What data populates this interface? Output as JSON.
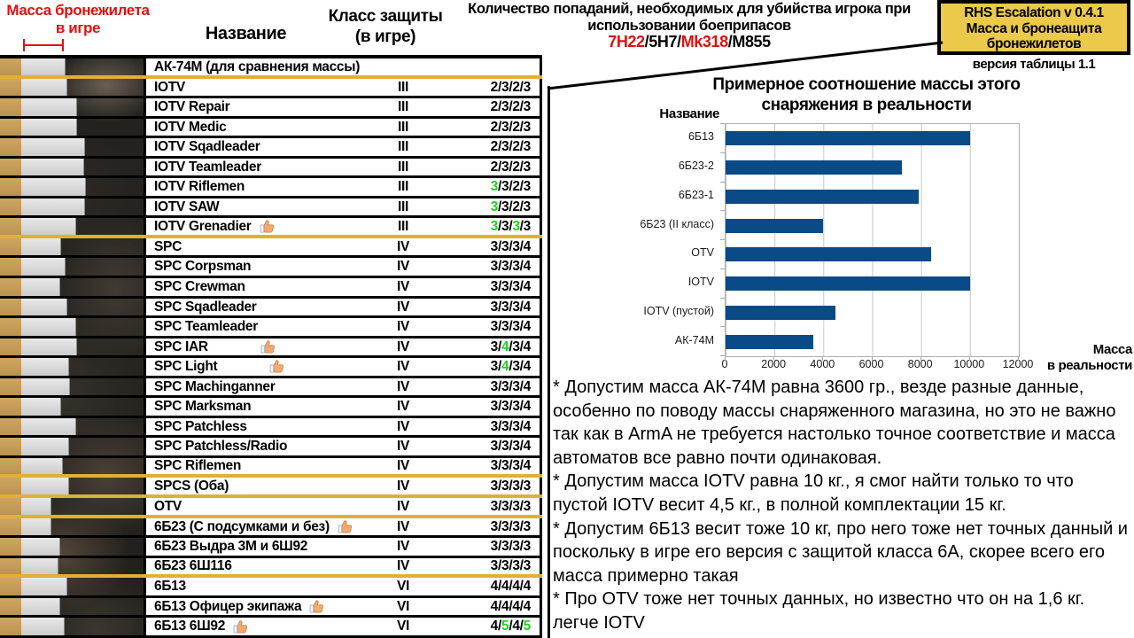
{
  "colors": {
    "red": "#e01010",
    "green": "#24cf24",
    "divider_yellow": "#e2ae36",
    "bar_blue": "#0a4a86",
    "tan": "#c89e58",
    "bar_gray": "#d9d9d9",
    "box_yellow": "#eac94b"
  },
  "header": {
    "mass_title_line1": "Масса бронежилета",
    "mass_title_line2": "в игре",
    "name_col": "Название",
    "class_col_line1": "Класс защиты",
    "class_col_line2": "(в игре)",
    "hits_line1": "Количество попаданий, необходимых для убийства игрока при",
    "hits_line2": "использовании боеприпасов",
    "ammo_parts": [
      {
        "text": "7Н22",
        "red": true
      },
      {
        "text": "/",
        "red": false
      },
      {
        "text": "5Н7",
        "red": false
      },
      {
        "text": "/",
        "red": false
      },
      {
        "text": "Mk318",
        "red": true
      },
      {
        "text": "/",
        "red": false
      },
      {
        "text": "M855",
        "red": false
      }
    ],
    "version_box_line1": "RHS Escalation v 0.4.1",
    "version_box_line2": "Масса и бронеащита",
    "version_box_line3": "бронежилетов",
    "version_note": "версия таблицы 1.1"
  },
  "table": {
    "rows": [
      {
        "name": "АК-74М (для сравнения массы)",
        "cls": "",
        "hits": [],
        "green": [],
        "thumb": false,
        "bar": 49,
        "divider": "yellow"
      },
      {
        "name": "IOTV",
        "cls": "III",
        "hits": [
          "2",
          "3",
          "2",
          "3"
        ],
        "green": [
          0,
          0,
          0,
          0
        ],
        "thumb": false,
        "bar": 51
      },
      {
        "name": "IOTV Repair",
        "cls": "III",
        "hits": [
          "2",
          "3",
          "2",
          "3"
        ],
        "green": [
          0,
          0,
          0,
          0
        ],
        "thumb": false,
        "bar": 62
      },
      {
        "name": "IOTV Medic",
        "cls": "III",
        "hits": [
          "2",
          "3",
          "2",
          "3"
        ],
        "green": [
          0,
          0,
          0,
          0
        ],
        "thumb": false,
        "bar": 62
      },
      {
        "name": "IOTV Sqadleader",
        "cls": "III",
        "hits": [
          "2",
          "3",
          "2",
          "3"
        ],
        "green": [
          0,
          0,
          0,
          0
        ],
        "thumb": false,
        "bar": 71
      },
      {
        "name": "IOTV Teamleader",
        "cls": "III",
        "hits": [
          "2",
          "3",
          "2",
          "3"
        ],
        "green": [
          0,
          0,
          0,
          0
        ],
        "thumb": false,
        "bar": 70
      },
      {
        "name": "IOTV Riflemen",
        "cls": "III",
        "hits": [
          "3",
          "3",
          "2",
          "3"
        ],
        "green": [
          1,
          0,
          0,
          0
        ],
        "thumb": false,
        "bar": 72
      },
      {
        "name": "IOTV SAW",
        "cls": "III",
        "hits": [
          "3",
          "3",
          "2",
          "3"
        ],
        "green": [
          1,
          0,
          0,
          0
        ],
        "thumb": false,
        "bar": 71
      },
      {
        "name": "IOTV Grenadier",
        "cls": "III",
        "hits": [
          "3",
          "3",
          "3",
          "3"
        ],
        "green": [
          1,
          0,
          1,
          0
        ],
        "thumb": true,
        "bar": 61,
        "divider": "yellow"
      },
      {
        "name": "SPC",
        "cls": "IV",
        "hits": [
          "3",
          "3",
          "3",
          "4"
        ],
        "green": [
          0,
          0,
          0,
          0
        ],
        "thumb": false,
        "bar": 44
      },
      {
        "name": "SPC Corpsman",
        "cls": "IV",
        "hits": [
          "3",
          "3",
          "3",
          "4"
        ],
        "green": [
          0,
          0,
          0,
          0
        ],
        "thumb": false,
        "bar": 49
      },
      {
        "name": "SPC Crewman",
        "cls": "IV",
        "hits": [
          "3",
          "3",
          "3",
          "4"
        ],
        "green": [
          0,
          0,
          0,
          0
        ],
        "thumb": false,
        "bar": 43
      },
      {
        "name": "SPC Sqadleader",
        "cls": "IV",
        "hits": [
          "3",
          "3",
          "3",
          "4"
        ],
        "green": [
          0,
          0,
          0,
          0
        ],
        "thumb": false,
        "bar": 51
      },
      {
        "name": "SPC Teamleader",
        "cls": "IV",
        "hits": [
          "3",
          "3",
          "3",
          "4"
        ],
        "green": [
          0,
          0,
          0,
          0
        ],
        "thumb": false,
        "bar": 61
      },
      {
        "name": "SPC IAR",
        "cls": "IV",
        "hits": [
          "3",
          "4",
          "3",
          "4"
        ],
        "green": [
          0,
          1,
          0,
          0
        ],
        "thumb": true,
        "tml": 58,
        "bar": 62
      },
      {
        "name": "SPC Light",
        "cls": "IV",
        "hits": [
          "3",
          "4",
          "3",
          "4"
        ],
        "green": [
          0,
          1,
          0,
          0
        ],
        "thumb": true,
        "tml": 58,
        "bar": 53
      },
      {
        "name": "SPC Machinganner",
        "cls": "IV",
        "hits": [
          "3",
          "3",
          "3",
          "4"
        ],
        "green": [
          0,
          0,
          0,
          0
        ],
        "thumb": false,
        "bar": 54
      },
      {
        "name": "SPC Marksman",
        "cls": "IV",
        "hits": [
          "3",
          "3",
          "3",
          "4"
        ],
        "green": [
          0,
          0,
          0,
          0
        ],
        "thumb": false,
        "bar": 44
      },
      {
        "name": "SPC Patchless",
        "cls": "IV",
        "hits": [
          "3",
          "3",
          "3",
          "4"
        ],
        "green": [
          0,
          0,
          0,
          0
        ],
        "thumb": false,
        "bar": 61
      },
      {
        "name": "SPC Patchless/Radio",
        "cls": "IV",
        "hits": [
          "3",
          "3",
          "3",
          "4"
        ],
        "green": [
          0,
          0,
          0,
          0
        ],
        "thumb": false,
        "bar": 53
      },
      {
        "name": "SPC Riflemen",
        "cls": "IV",
        "hits": [
          "3",
          "3",
          "3",
          "4"
        ],
        "green": [
          0,
          0,
          0,
          0
        ],
        "thumb": false,
        "bar": 46,
        "divider": "yellow"
      },
      {
        "name": "SPCS (Оба)",
        "cls": "IV",
        "hits": [
          "3",
          "3",
          "3",
          "3"
        ],
        "green": [
          0,
          0,
          0,
          0
        ],
        "thumb": false,
        "bar": 53,
        "divider": "yellow"
      },
      {
        "name": "OTV",
        "cls": "IV",
        "hits": [
          "3",
          "3",
          "3",
          "3"
        ],
        "green": [
          0,
          0,
          0,
          0
        ],
        "thumb": false,
        "bar": 33,
        "divider": "yellow"
      },
      {
        "name": "6Б23 (С подсумками и без)",
        "cls": "IV",
        "hits": [
          "3",
          "3",
          "3",
          "3"
        ],
        "green": [
          0,
          0,
          0,
          0
        ],
        "thumb": true,
        "bar": 33
      },
      {
        "name": "6Б23 Выдра 3М и 6Ш92",
        "cls": "IV",
        "hits": [
          "3",
          "3",
          "3",
          "3"
        ],
        "green": [
          0,
          0,
          0,
          0
        ],
        "thumb": false,
        "bar": 43
      },
      {
        "name": "6Б23 6Ш116",
        "cls": "IV",
        "hits": [
          "3",
          "3",
          "3",
          "3"
        ],
        "green": [
          0,
          0,
          0,
          0
        ],
        "thumb": false,
        "bar": 41,
        "divider": "yellow"
      },
      {
        "name": "6Б13",
        "cls": "VI",
        "hits": [
          "4",
          "4",
          "4",
          "4"
        ],
        "green": [
          0,
          0,
          0,
          0
        ],
        "thumb": false,
        "bar": 51
      },
      {
        "name": "6Б13 Офицер экипажа",
        "cls": "VI",
        "hits": [
          "4",
          "4",
          "4",
          "4"
        ],
        "green": [
          0,
          0,
          0,
          0
        ],
        "thumb": true,
        "bar": 43
      },
      {
        "name": "6Б13 6Ш92",
        "cls": "VI",
        "hits": [
          "4",
          "5",
          "4",
          "5"
        ],
        "green": [
          0,
          1,
          0,
          1
        ],
        "thumb": true,
        "bar": 48
      }
    ]
  },
  "chart_data": {
    "type": "bar",
    "orientation": "horizontal",
    "title": "Примерное соотношение массы этого снаряжения в реальности",
    "title_lines": [
      "Примерное соотношение массы этого",
      "снаряжения в реальности"
    ],
    "axis_label_y": "Название",
    "xlabel_lines": [
      "Масса",
      "в реальности"
    ],
    "categories": [
      "6Б13",
      "6Б23-2",
      "6Б23-1",
      "6Б23 (II класс)",
      "OTV",
      "IOTV",
      "IOTV (пустой)",
      "АК-74М"
    ],
    "values": [
      10000,
      7200,
      7900,
      4000,
      8400,
      10000,
      4500,
      3600
    ],
    "xlim": [
      0,
      12000
    ],
    "xticks": [
      "0",
      "2000",
      "4000",
      "6000",
      "8000",
      "10000",
      "12000"
    ],
    "grid": true,
    "legend": false,
    "bar_color": "#0a4a86"
  },
  "notes": [
    "* Допустим масса АК-74М равна 3600 гр., везде разные данные, особенно по поводу массы снаряженного магазина, но это не важно так как в ArmA не требуется настолько точное соответствие и масса автоматов все равно почти одинаковая.",
    "* Допустим масса IOTV равна 10 кг., я смог найти только то что пустой IOTV весит 4,5 кг., в полной комплектации 15 кг.",
    "* Допустим 6Б13 весит тоже 10 кг, про него тоже нет точных данный и поскольку в игре его версия с защитой класса 6А, скорее всего его масса примерно такая",
    "* Про OTV тоже нет точных данных, но известно что он на 1,6 кг. легче IOTV"
  ]
}
